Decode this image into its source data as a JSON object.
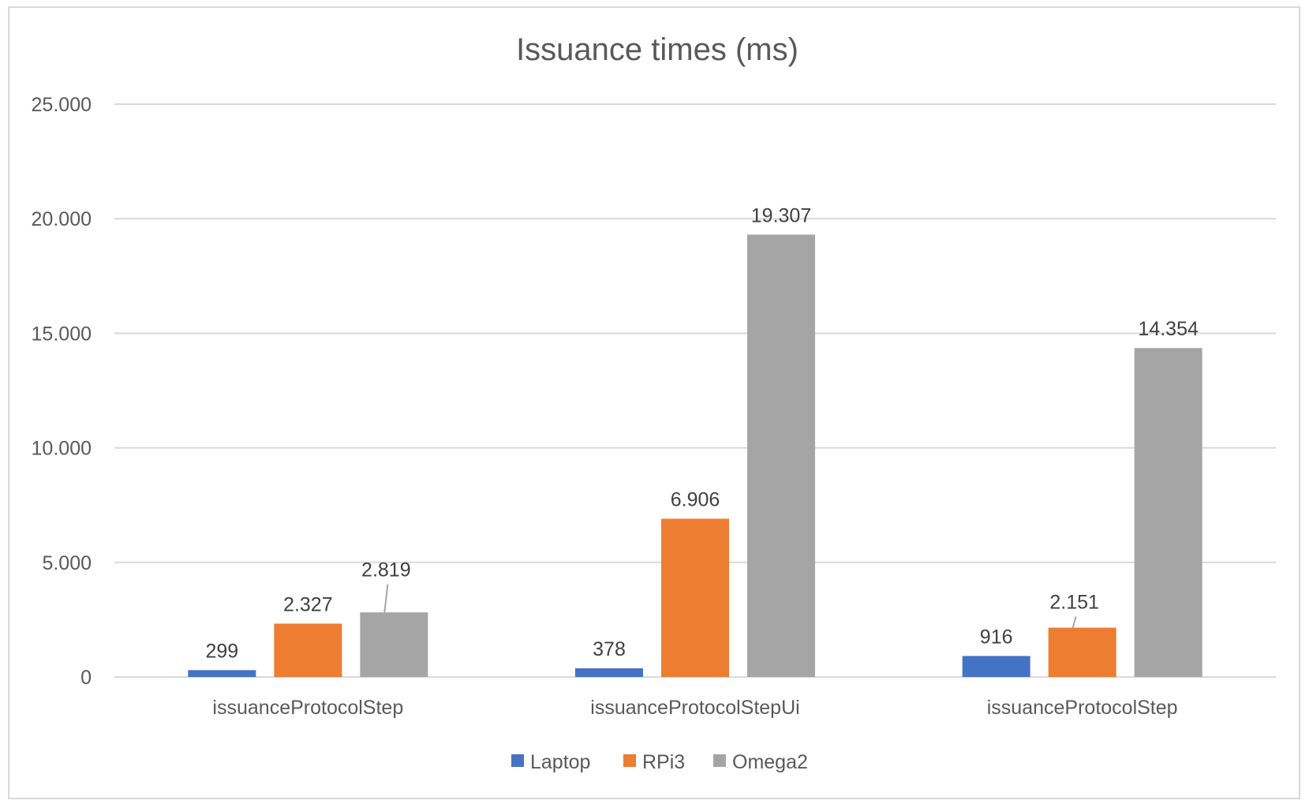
{
  "chart_data": {
    "type": "bar",
    "title": "Issuance times (ms)",
    "categories": [
      "issuanceProtocolStep",
      "issuanceProtocolStepUi",
      "issuanceProtocolStep"
    ],
    "series": [
      {
        "name": "Laptop",
        "values": [
          299,
          378,
          916
        ],
        "labels": [
          "299",
          "378",
          "916"
        ],
        "color": "#4472c4"
      },
      {
        "name": "RPi3",
        "values": [
          2327,
          6906,
          2151
        ],
        "labels": [
          "2.327",
          "6.906",
          "2.151"
        ],
        "color": "#ed7d31"
      },
      {
        "name": "Omega2",
        "values": [
          2819,
          19307,
          14354
        ],
        "labels": [
          "2.819",
          "19.307",
          "14.354"
        ],
        "color": "#a5a5a5"
      }
    ],
    "yticks": [
      0,
      5000,
      10000,
      15000,
      20000,
      25000
    ],
    "ytick_labels": [
      "0",
      "5.000",
      "10.000",
      "15.000",
      "20.000",
      "25.000"
    ],
    "ylim": [
      0,
      25000
    ],
    "grid": true,
    "legend": "bottom",
    "xlabel": "",
    "ylabel": ""
  }
}
